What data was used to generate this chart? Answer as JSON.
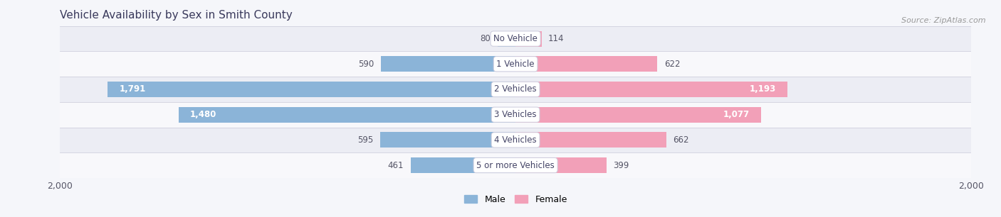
{
  "title": "Vehicle Availability by Sex in Smith County",
  "source": "Source: ZipAtlas.com",
  "categories": [
    "No Vehicle",
    "1 Vehicle",
    "2 Vehicles",
    "3 Vehicles",
    "4 Vehicles",
    "5 or more Vehicles"
  ],
  "male_values": [
    80,
    590,
    1791,
    1480,
    595,
    461
  ],
  "female_values": [
    114,
    622,
    1193,
    1077,
    662,
    399
  ],
  "male_color": "#8bb4d8",
  "female_color": "#f2a0b8",
  "row_colors": [
    "#ecedf4",
    "#f8f8fb"
  ],
  "axis_max": 2000,
  "label_color": "#555566",
  "title_color": "#3a3a5c",
  "source_color": "#999999",
  "legend_male": "Male",
  "legend_female": "Female",
  "bar_height": 0.62,
  "fig_bg": "#f5f6fa"
}
